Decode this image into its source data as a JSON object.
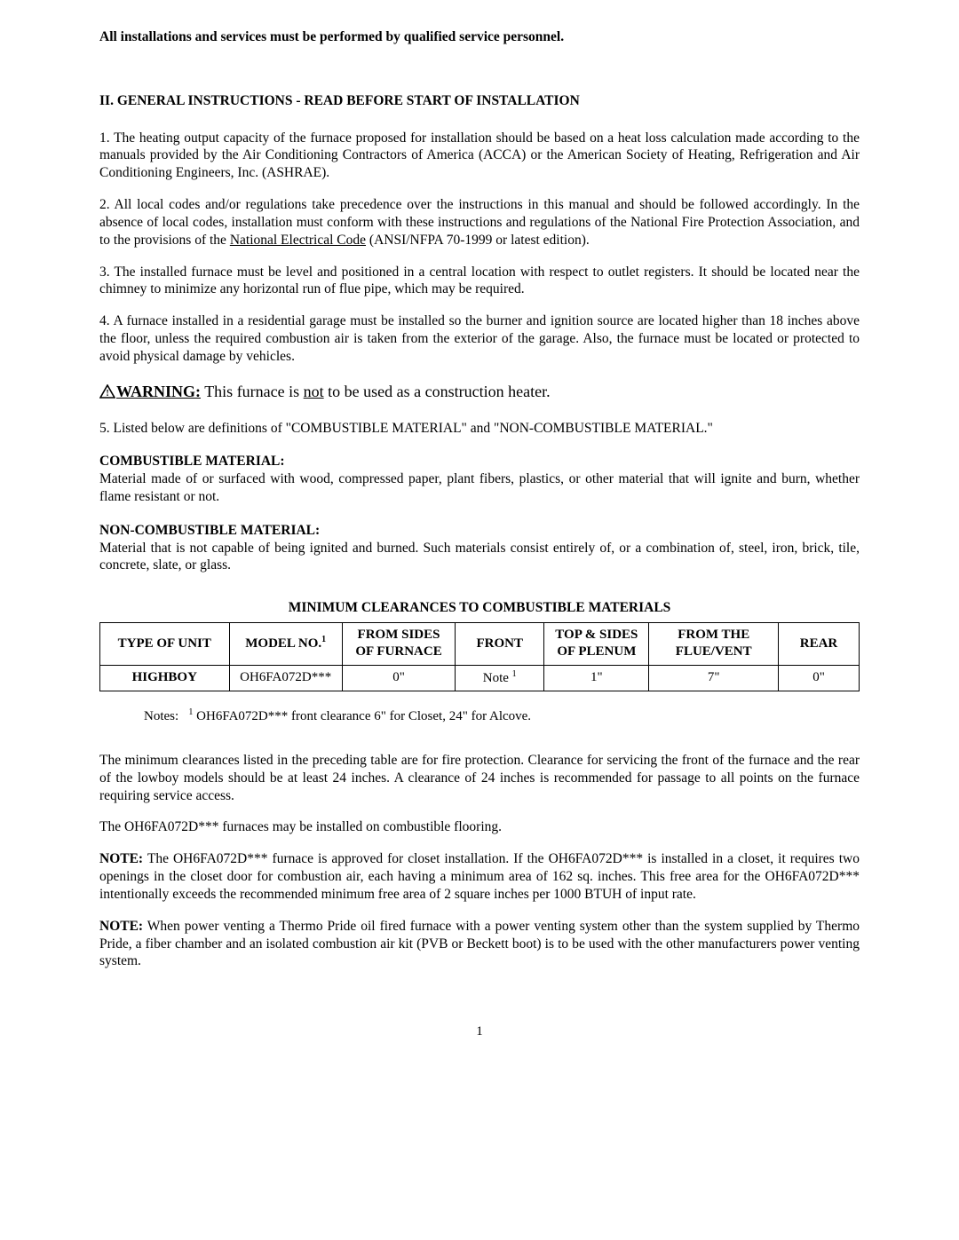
{
  "header": "All installations and services must be performed by qualified service personnel.",
  "section_title": "II.  GENERAL INSTRUCTIONS - READ BEFORE START OF INSTALLATION",
  "para1": "1. The heating output capacity of the furnace proposed for installation should be based on a heat loss calculation made according to the manuals provided by the Air Conditioning Contractors of America (ACCA) or the American Society of Heating, Refrigeration and Air Conditioning Engineers, Inc. (ASHRAE).",
  "para2_pre": "2. All local codes and/or regulations take precedence over the instructions in this manual and should be followed accordingly. In the absence of local codes, installation must conform with these instructions and regulations of the National Fire Protection Association, and to the provisions of the ",
  "para2_underlined": "National Electrical Code",
  "para2_post": " (ANSI/NFPA 70-1999 or latest edition).",
  "para3": "3. The installed furnace must be level and positioned in a central location with respect to outlet registers. It should be located near the chimney to minimize any horizontal run of flue pipe, which may be required.",
  "para4": "4. A furnace installed in a residential garage must be installed so the burner and ignition source are located higher than 18 inches above the floor, unless the required combustion air is taken from the exterior of the garage. Also, the furnace must be located or protected to avoid physical damage by vehicles.",
  "warning": {
    "label": "WARNING:",
    "pre": " This furnace is ",
    "not": "not",
    "post": " to be used as a construction heater."
  },
  "para5": "5. Listed below are definitions of \"COMBUSTIBLE MATERIAL\" and \"NON-COMBUSTIBLE MATERIAL.\"",
  "combustible": {
    "title": "COMBUSTIBLE MATERIAL:",
    "body": "Material made of or surfaced with wood, compressed paper, plant fibers, plastics, or other material that will ignite and burn, whether flame resistant or not."
  },
  "noncombustible": {
    "title": "NON-COMBUSTIBLE MATERIAL:",
    "body": "Material that is not capable of being ignited and burned.  Such materials consist entirely of, or a combination of, steel, iron, brick, tile, concrete, slate, or glass."
  },
  "table": {
    "title": "MINIMUM CLEARANCES TO COMBUSTIBLE MATERIALS",
    "headers": {
      "c0": "TYPE OF UNIT",
      "c1_pre": "MODEL NO.",
      "c1_sup": "1",
      "c2": "FROM SIDES OF FURNACE",
      "c3": "FRONT",
      "c4": "TOP & SIDES OF PLENUM",
      "c5": "FROM THE FLUE/VENT",
      "c6": "REAR"
    },
    "row": {
      "c0": "HIGHBOY",
      "c1": "OH6FA072D***",
      "c2": "0\"",
      "c3_pre": "Note ",
      "c3_sup": "1",
      "c4": "1\"",
      "c5": "7\"",
      "c6": "0\""
    },
    "col_widths": [
      "16%",
      "14%",
      "14%",
      "11%",
      "13%",
      "16%",
      "10%"
    ]
  },
  "notes": {
    "label": "Notes:",
    "sup": "1",
    "text": " OH6FA072D*** front clearance  6\" for Closet, 24\" for Alcove."
  },
  "para_after_table": "The minimum clearances listed in the preceding table are for fire protection.  Clearance for servicing the front of the furnace and the rear of the lowboy models should be at least 24 inches.  A clearance of 24 inches is recommended for passage to all points on the furnace requiring service access.",
  "para_flooring": "The OH6FA072D*** furnaces may be installed on combustible flooring.",
  "note1": {
    "label": "NOTE:",
    "body": " The OH6FA072D*** furnace is approved for closet installation. If the OH6FA072D*** is installed in a closet, it requires two openings in the closet door for combustion air, each having a minimum area of 162 sq. inches. This free area for the OH6FA072D*** intentionally exceeds the recommended minimum free area of 2 square inches per 1000 BTUH of input rate."
  },
  "note2": {
    "label": "NOTE:",
    "body": "  When power venting a Thermo Pride oil fired furnace with a power venting system other than the system supplied by Thermo Pride, a fiber chamber and an isolated combustion air kit (PVB or Beckett boot) is to be used with the other manufacturers power venting system."
  },
  "page_number": "1",
  "colors": {
    "text": "#000000",
    "background": "#ffffff",
    "border": "#000000"
  }
}
